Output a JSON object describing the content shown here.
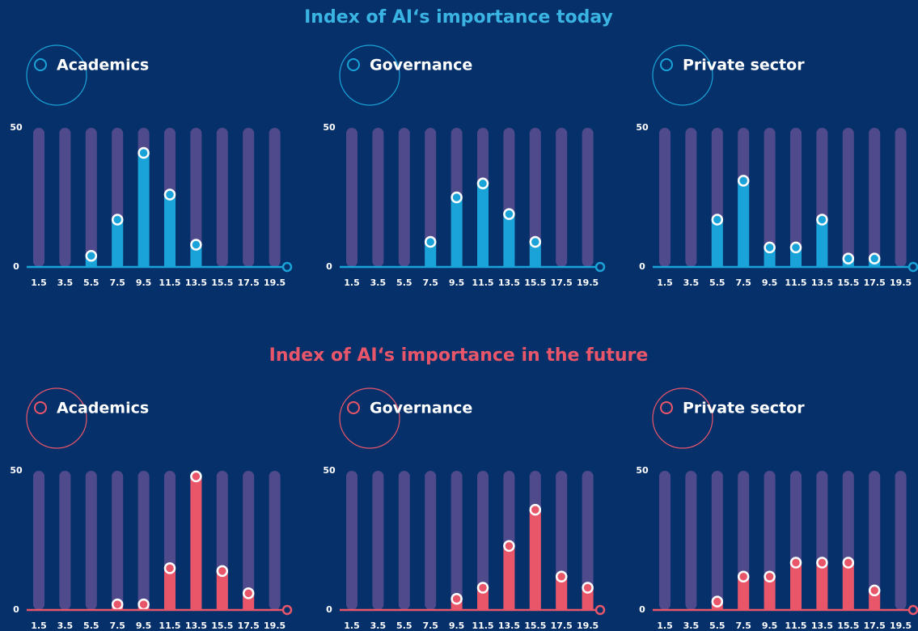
{
  "section_titles": [
    "Index of AI‘s importance today",
    "Index of AI‘s importance in the future"
  ],
  "chart_data": [
    {
      "type": "bar",
      "title": "Academics",
      "color": "#1aa3d8",
      "categories": [
        "1.5",
        "3.5",
        "5.5",
        "7.5",
        "9.5",
        "11.5",
        "13.5",
        "15.5",
        "17.5",
        "19.5"
      ],
      "values": [
        0,
        0,
        4,
        17,
        41,
        26,
        8,
        0,
        0,
        0
      ],
      "ylim": [
        0,
        50
      ],
      "yticks": [
        0,
        50
      ]
    },
    {
      "type": "bar",
      "title": "Governance",
      "color": "#1aa3d8",
      "categories": [
        "1.5",
        "3.5",
        "5.5",
        "7.5",
        "9.5",
        "11.5",
        "13.5",
        "15.5",
        "17.5",
        "19.5"
      ],
      "values": [
        0,
        0,
        0,
        9,
        25,
        30,
        19,
        9,
        0,
        0
      ],
      "ylim": [
        0,
        50
      ],
      "yticks": [
        0,
        50
      ]
    },
    {
      "type": "bar",
      "title": "Private sector",
      "color": "#1aa3d8",
      "categories": [
        "1.5",
        "3.5",
        "5.5",
        "7.5",
        "9.5",
        "11.5",
        "13.5",
        "15.5",
        "17.5",
        "19.5"
      ],
      "values": [
        0,
        0,
        17,
        31,
        7,
        7,
        17,
        3,
        3,
        0
      ],
      "ylim": [
        0,
        50
      ],
      "yticks": [
        0,
        50
      ]
    },
    {
      "type": "bar",
      "title": "Academics",
      "color": "#e9566a",
      "categories": [
        "1.5",
        "3.5",
        "5.5",
        "7.5",
        "9.5",
        "11.5",
        "13.5",
        "15.5",
        "17.5",
        "19.5"
      ],
      "values": [
        0,
        0,
        0,
        2,
        2,
        15,
        48,
        14,
        6,
        0
      ],
      "ylim": [
        0,
        50
      ],
      "yticks": [
        0,
        50
      ]
    },
    {
      "type": "bar",
      "title": "Governance",
      "color": "#e9566a",
      "categories": [
        "1.5",
        "3.5",
        "5.5",
        "7.5",
        "9.5",
        "11.5",
        "13.5",
        "15.5",
        "17.5",
        "19.5"
      ],
      "values": [
        0,
        0,
        0,
        0,
        4,
        8,
        23,
        36,
        12,
        8
      ],
      "ylim": [
        0,
        50
      ],
      "yticks": [
        0,
        50
      ]
    },
    {
      "type": "bar",
      "title": "Private sector",
      "color": "#e9566a",
      "categories": [
        "1.5",
        "3.5",
        "5.5",
        "7.5",
        "9.5",
        "11.5",
        "13.5",
        "15.5",
        "17.5",
        "19.5"
      ],
      "values": [
        0,
        0,
        3,
        12,
        12,
        17,
        17,
        17,
        7,
        0
      ],
      "ylim": [
        0,
        50
      ],
      "yticks": [
        0,
        50
      ]
    }
  ]
}
